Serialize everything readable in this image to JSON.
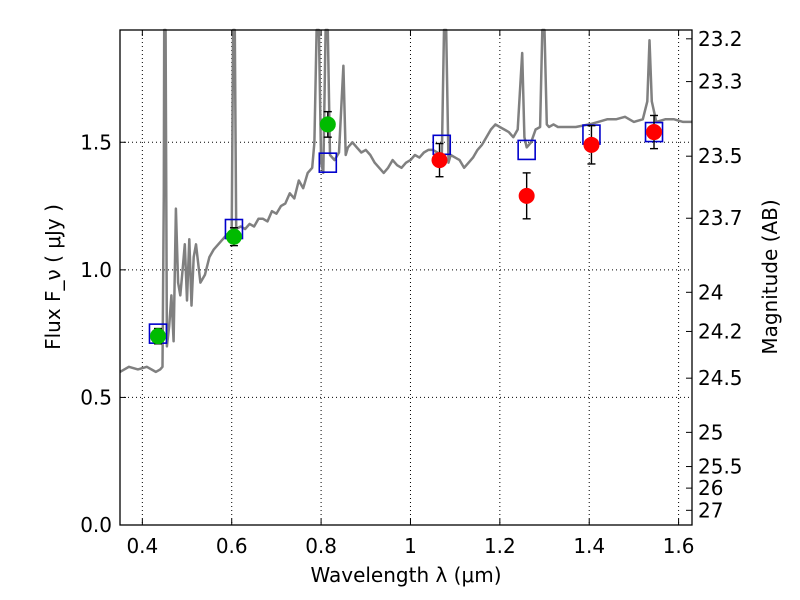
{
  "chart_data": {
    "type": "scatter",
    "title": "",
    "xlabel": "Wavelength  λ (μm)",
    "ylabel": "Flux  F_ν  ( μJy )",
    "ylabel_right": "Magnitude (AB)",
    "xlim": [
      0.35,
      1.63
    ],
    "ylim": [
      0.0,
      1.94
    ],
    "grid": true,
    "x_ticks": [
      {
        "value": 0.4,
        "label": "0.4"
      },
      {
        "value": 0.6,
        "label": "0.6"
      },
      {
        "value": 0.8,
        "label": "0.8"
      },
      {
        "value": 1.0,
        "label": "1"
      },
      {
        "value": 1.2,
        "label": "1.2"
      },
      {
        "value": 1.4,
        "label": "1.4"
      },
      {
        "value": 1.6,
        "label": "1.6"
      }
    ],
    "y_ticks": [
      {
        "value": 0.0,
        "label": "0.0"
      },
      {
        "value": 0.5,
        "label": "0.5"
      },
      {
        "value": 1.0,
        "label": "1.0"
      },
      {
        "value": 1.5,
        "label": "1.5"
      }
    ],
    "mag_ticks": [
      {
        "mag": 23.2,
        "label": "23.2"
      },
      {
        "mag": 23.3,
        "label": "23.3"
      },
      {
        "mag": 23.5,
        "label": "23.5"
      },
      {
        "mag": 23.7,
        "label": "23.7"
      },
      {
        "mag": 24.0,
        "label": "24"
      },
      {
        "mag": 24.2,
        "label": "24.2"
      },
      {
        "mag": 24.5,
        "label": "24.5"
      },
      {
        "mag": 25.0,
        "label": "25"
      },
      {
        "mag": 25.5,
        "label": "25.5"
      },
      {
        "mag": 26.0,
        "label": "26"
      },
      {
        "mag": 27.0,
        "label": "27"
      }
    ],
    "spectrum": {
      "color": "#808080",
      "points": [
        [
          0.35,
          0.6
        ],
        [
          0.37,
          0.62
        ],
        [
          0.39,
          0.61
        ],
        [
          0.41,
          0.62
        ],
        [
          0.43,
          0.6
        ],
        [
          0.44,
          0.61
        ],
        [
          0.445,
          0.62
        ],
        [
          0.448,
          1.3
        ],
        [
          0.449,
          1.94
        ],
        [
          0.452,
          1.94
        ],
        [
          0.455,
          0.7
        ],
        [
          0.46,
          0.78
        ],
        [
          0.465,
          0.9
        ],
        [
          0.47,
          0.72
        ],
        [
          0.475,
          1.24
        ],
        [
          0.48,
          0.95
        ],
        [
          0.485,
          0.9
        ],
        [
          0.49,
          1.0
        ],
        [
          0.495,
          1.1
        ],
        [
          0.5,
          0.88
        ],
        [
          0.505,
          1.12
        ],
        [
          0.51,
          0.86
        ],
        [
          0.515,
          1.05
        ],
        [
          0.52,
          1.1
        ],
        [
          0.53,
          0.95
        ],
        [
          0.54,
          0.98
        ],
        [
          0.55,
          1.05
        ],
        [
          0.56,
          1.08
        ],
        [
          0.57,
          1.1
        ],
        [
          0.58,
          1.12
        ],
        [
          0.59,
          1.14
        ],
        [
          0.6,
          1.14
        ],
        [
          0.603,
          1.94
        ],
        [
          0.607,
          1.94
        ],
        [
          0.61,
          1.16
        ],
        [
          0.62,
          1.17
        ],
        [
          0.63,
          1.16
        ],
        [
          0.64,
          1.18
        ],
        [
          0.65,
          1.17
        ],
        [
          0.66,
          1.2
        ],
        [
          0.67,
          1.2
        ],
        [
          0.68,
          1.19
        ],
        [
          0.69,
          1.23
        ],
        [
          0.7,
          1.22
        ],
        [
          0.71,
          1.25
        ],
        [
          0.72,
          1.26
        ],
        [
          0.73,
          1.3
        ],
        [
          0.74,
          1.28
        ],
        [
          0.75,
          1.35
        ],
        [
          0.76,
          1.32
        ],
        [
          0.77,
          1.38
        ],
        [
          0.78,
          1.4
        ],
        [
          0.785,
          1.5
        ],
        [
          0.79,
          1.94
        ],
        [
          0.795,
          1.94
        ],
        [
          0.8,
          1.42
        ],
        [
          0.805,
          1.38
        ],
        [
          0.81,
          1.94
        ],
        [
          0.815,
          1.94
        ],
        [
          0.82,
          1.45
        ],
        [
          0.83,
          1.43
        ],
        [
          0.84,
          1.46
        ],
        [
          0.85,
          1.8
        ],
        [
          0.855,
          1.45
        ],
        [
          0.86,
          1.48
        ],
        [
          0.87,
          1.5
        ],
        [
          0.88,
          1.48
        ],
        [
          0.89,
          1.46
        ],
        [
          0.9,
          1.47
        ],
        [
          0.91,
          1.45
        ],
        [
          0.92,
          1.42
        ],
        [
          0.93,
          1.4
        ],
        [
          0.94,
          1.38
        ],
        [
          0.95,
          1.4
        ],
        [
          0.96,
          1.43
        ],
        [
          0.97,
          1.41
        ],
        [
          0.98,
          1.4
        ],
        [
          0.99,
          1.42
        ],
        [
          1.0,
          1.43
        ],
        [
          1.01,
          1.45
        ],
        [
          1.02,
          1.44
        ],
        [
          1.03,
          1.46
        ],
        [
          1.04,
          1.47
        ],
        [
          1.05,
          1.47
        ],
        [
          1.06,
          1.46
        ],
        [
          1.07,
          1.44
        ],
        [
          1.075,
          1.94
        ],
        [
          1.08,
          1.94
        ],
        [
          1.085,
          1.42
        ],
        [
          1.09,
          1.45
        ],
        [
          1.1,
          1.44
        ],
        [
          1.11,
          1.43
        ],
        [
          1.12,
          1.4
        ],
        [
          1.13,
          1.42
        ],
        [
          1.14,
          1.44
        ],
        [
          1.15,
          1.47
        ],
        [
          1.16,
          1.49
        ],
        [
          1.17,
          1.52
        ],
        [
          1.18,
          1.55
        ],
        [
          1.19,
          1.57
        ],
        [
          1.2,
          1.56
        ],
        [
          1.21,
          1.55
        ],
        [
          1.22,
          1.54
        ],
        [
          1.23,
          1.52
        ],
        [
          1.24,
          1.55
        ],
        [
          1.25,
          1.85
        ],
        [
          1.255,
          1.52
        ],
        [
          1.26,
          1.48
        ],
        [
          1.27,
          1.5
        ],
        [
          1.28,
          1.55
        ],
        [
          1.29,
          1.56
        ],
        [
          1.295,
          1.94
        ],
        [
          1.3,
          1.94
        ],
        [
          1.305,
          1.57
        ],
        [
          1.31,
          1.56
        ],
        [
          1.32,
          1.57
        ],
        [
          1.33,
          1.56
        ],
        [
          1.35,
          1.56
        ],
        [
          1.37,
          1.56
        ],
        [
          1.4,
          1.57
        ],
        [
          1.42,
          1.58
        ],
        [
          1.44,
          1.59
        ],
        [
          1.46,
          1.59
        ],
        [
          1.48,
          1.6
        ],
        [
          1.5,
          1.58
        ],
        [
          1.52,
          1.59
        ],
        [
          1.53,
          1.66
        ],
        [
          1.535,
          1.9
        ],
        [
          1.54,
          1.66
        ],
        [
          1.55,
          1.58
        ],
        [
          1.57,
          1.59
        ],
        [
          1.59,
          1.59
        ],
        [
          1.61,
          1.58
        ],
        [
          1.63,
          1.58
        ]
      ]
    },
    "model_photometry": {
      "color": "#0000cc",
      "points": [
        [
          0.435,
          0.75
        ],
        [
          0.605,
          1.16
        ],
        [
          0.815,
          1.42
        ],
        [
          1.07,
          1.49
        ],
        [
          1.26,
          1.47
        ],
        [
          1.405,
          1.53
        ],
        [
          1.545,
          1.54
        ]
      ]
    },
    "observed_green": {
      "color": "#00bb00",
      "points": [
        {
          "x": 0.435,
          "y": 0.74,
          "err": 0.03
        },
        {
          "x": 0.605,
          "y": 1.13,
          "err": 0.035
        },
        {
          "x": 0.815,
          "y": 1.57,
          "err": 0.05
        }
      ]
    },
    "observed_red": {
      "color": "#ff0000",
      "points": [
        {
          "x": 1.065,
          "y": 1.43,
          "err": 0.065
        },
        {
          "x": 1.26,
          "y": 1.29,
          "err": 0.09
        },
        {
          "x": 1.405,
          "y": 1.49,
          "err": 0.075
        },
        {
          "x": 1.545,
          "y": 1.54,
          "err": 0.065
        }
      ]
    }
  }
}
